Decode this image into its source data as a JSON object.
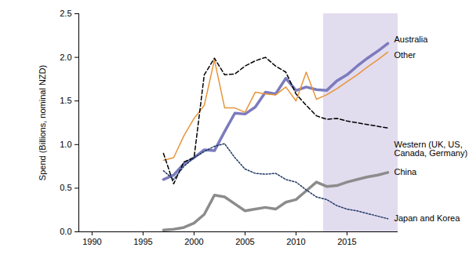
{
  "chart_data": {
    "type": "line",
    "y_label": "Spend (Billions, nominal NZD)",
    "x": [
      1997,
      1998,
      1999,
      2000,
      2001,
      2002,
      2003,
      2004,
      2005,
      2006,
      2007,
      2008,
      2009,
      2010,
      2011,
      2012,
      2013,
      2014,
      2015,
      2016,
      2017,
      2018,
      2019
    ],
    "xlim": [
      1988.7,
      2020
    ],
    "xticks": [
      1990,
      1995,
      2000,
      2005,
      2010,
      2015
    ],
    "ylim": [
      0,
      2.5
    ],
    "yticks": [
      {
        "value": 0,
        "label": "0.0"
      },
      {
        "value": 0.5,
        "label": "0.5"
      },
      {
        "value": 1,
        "label": "1.0"
      },
      {
        "value": 1.5,
        "label": "1.5"
      },
      {
        "value": 2,
        "label": "2.0"
      },
      {
        "value": 2.5,
        "label": "2.5"
      }
    ],
    "shaded_region": [
      2012.7,
      2020
    ],
    "grid": false,
    "series": [
      {
        "name": "Australia",
        "color": "#7b7bbd",
        "line_style": "solid",
        "values": [
          0.6,
          0.65,
          0.78,
          0.85,
          0.94,
          0.93,
          1.15,
          1.36,
          1.35,
          1.43,
          1.6,
          1.58,
          1.76,
          1.62,
          1.66,
          1.63,
          1.62,
          1.73,
          1.8,
          1.9,
          1.99,
          2.07,
          2.16
        ]
      },
      {
        "name": "Other",
        "color": "#e8943a",
        "line_style": "solid",
        "values": [
          0.82,
          0.85,
          1.1,
          1.3,
          1.45,
          1.97,
          1.42,
          1.42,
          1.37,
          1.6,
          1.58,
          1.57,
          1.66,
          1.5,
          1.83,
          1.52,
          1.57,
          1.64,
          1.72,
          1.8,
          1.89,
          1.97,
          2.06
        ]
      },
      {
        "name": "Western (UK, US, Canada, Germany)",
        "color": "#000000",
        "line_style": "dashed",
        "values": [
          0.9,
          0.55,
          0.8,
          0.85,
          1.8,
          1.99,
          1.8,
          1.81,
          1.9,
          1.96,
          2.0,
          1.9,
          1.83,
          1.58,
          1.45,
          1.33,
          1.29,
          1.3,
          1.27,
          1.25,
          1.23,
          1.21,
          1.19
        ]
      },
      {
        "name": "China",
        "color": "#8c8c8c",
        "line_style": "solid",
        "values": [
          0.02,
          0.03,
          0.05,
          0.1,
          0.2,
          0.42,
          0.4,
          0.32,
          0.24,
          0.26,
          0.28,
          0.26,
          0.34,
          0.37,
          0.47,
          0.57,
          0.52,
          0.53,
          0.57,
          0.6,
          0.63,
          0.65,
          0.68
        ]
      },
      {
        "name": "Japan and Korea",
        "color": "#1f3864",
        "line_style": "dotted",
        "values": [
          0.7,
          0.6,
          0.75,
          0.85,
          0.92,
          0.98,
          1.01,
          0.85,
          0.72,
          0.67,
          0.66,
          0.67,
          0.6,
          0.57,
          0.48,
          0.4,
          0.37,
          0.3,
          0.26,
          0.24,
          0.21,
          0.18,
          0.15
        ]
      }
    ]
  }
}
